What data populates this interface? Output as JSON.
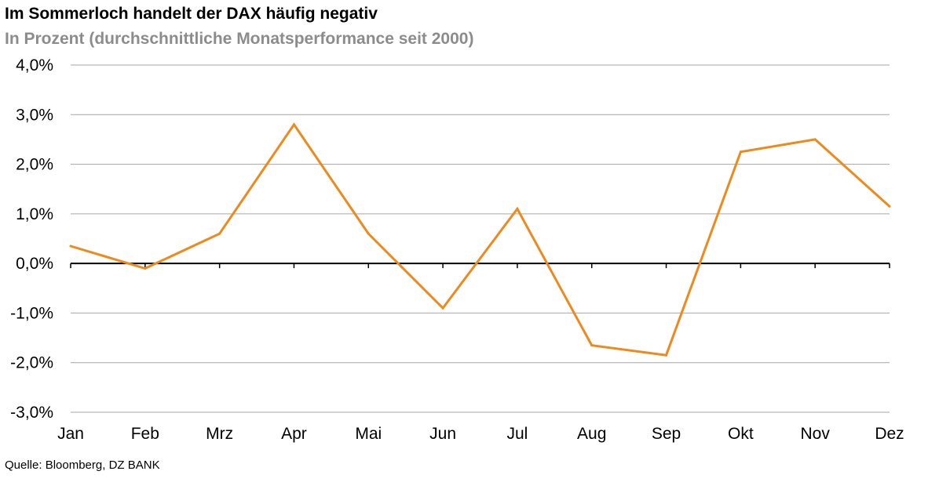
{
  "title": "Im Sommerloch handelt der DAX häufig negativ",
  "subtitle": "In Prozent (durchschnittliche Monatsperformance seit 2000)",
  "source": "Quelle: Bloomberg, DZ BANK",
  "chart_data": {
    "type": "line",
    "title": "Im Sommerloch handelt der DAX häufig negativ",
    "subtitle": "In Prozent (durchschnittliche Monatsperformance seit 2000)",
    "categories": [
      "Jan",
      "Feb",
      "Mrz",
      "Apr",
      "Mai",
      "Jun",
      "Jul",
      "Aug",
      "Sep",
      "Okt",
      "Nov",
      "Dez"
    ],
    "series": [
      {
        "values": [
          0.35,
          -0.1,
          0.6,
          2.8,
          0.6,
          -0.9,
          1.1,
          -1.65,
          -1.85,
          2.25,
          2.5,
          1.15
        ],
        "color": "#ec8a1e"
      }
    ],
    "ylim": [
      -3.0,
      4.0
    ],
    "yticks": [
      4.0,
      3.0,
      2.0,
      1.0,
      0.0,
      -1.0,
      -2.0,
      -3.0
    ],
    "ytick_labels": [
      "4,0%",
      "3,0%",
      "2,0%",
      "1,0%",
      "0,0%",
      "-1,0%",
      "-2,0%",
      "-3,0%"
    ],
    "grid": true,
    "legend": "none"
  }
}
